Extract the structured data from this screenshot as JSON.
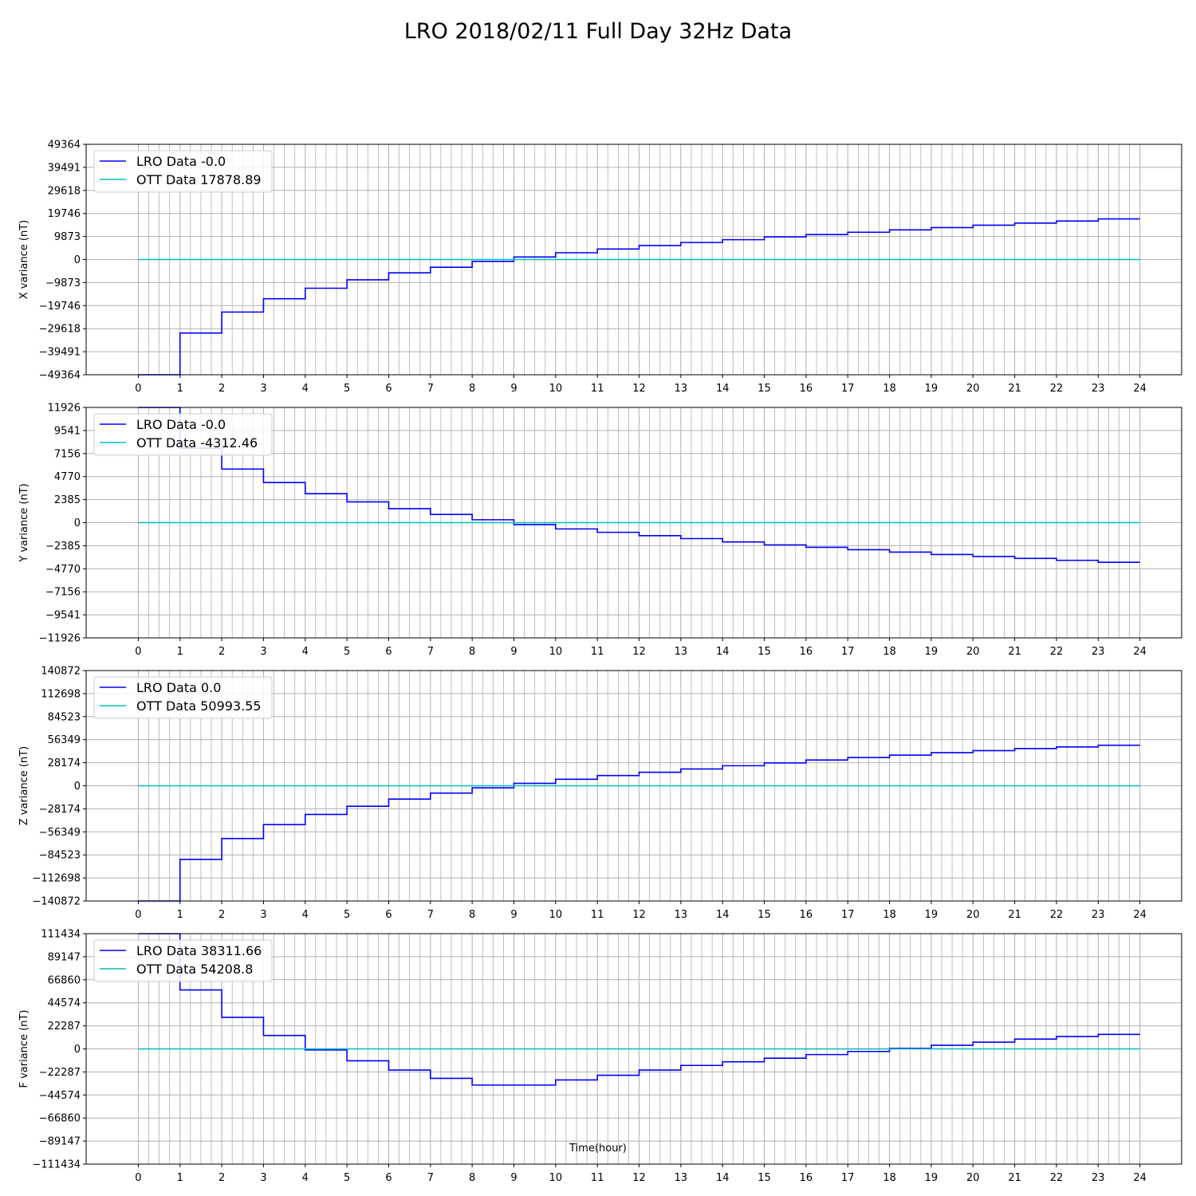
{
  "figure": {
    "title": "LRO 2018/02/11 Full Day 32Hz Data"
  },
  "colors": {
    "lro": "#0000ff",
    "ott": "#00bfbf",
    "grid": "#b0b0b0"
  },
  "chart_data": [
    {
      "type": "line",
      "ylabel": "X variance (nT)",
      "xlabel": "",
      "xlim": [
        -1.25,
        25
      ],
      "ylim": [
        -49364,
        49364
      ],
      "yticks": [
        "49364",
        "39491",
        "29618",
        "19746",
        "9873",
        "0",
        "−9873",
        "−19746",
        "−29618",
        "−39491",
        "−49364"
      ],
      "xticks": [
        "0",
        "1",
        "2",
        "3",
        "4",
        "5",
        "6",
        "7",
        "8",
        "9",
        "10",
        "11",
        "12",
        "13",
        "14",
        "15",
        "16",
        "17",
        "18",
        "19",
        "20",
        "21",
        "22",
        "23",
        "24"
      ],
      "grid": true,
      "legend_position": "top-left",
      "series": [
        {
          "name": "LRO Data -0.0",
          "color": "lro",
          "step": true,
          "x": [
            0,
            1,
            2,
            3,
            4,
            5,
            6,
            7,
            8,
            9,
            10,
            11,
            12,
            13,
            14,
            15,
            16,
            17,
            18,
            19,
            20,
            21,
            22,
            23,
            24
          ],
          "y": [
            -49364,
            -31500,
            -22500,
            -16800,
            -12300,
            -8700,
            -5700,
            -3300,
            -800,
            1100,
            2900,
            4500,
            6000,
            7300,
            8500,
            9700,
            10700,
            11700,
            12700,
            13700,
            14700,
            15600,
            16500,
            17400,
            17400
          ]
        },
        {
          "name": "OTT Data 17878.89",
          "color": "ott",
          "step": false,
          "x": [
            0,
            24
          ],
          "y": [
            0,
            0
          ]
        }
      ]
    },
    {
      "type": "line",
      "ylabel": "Y variance (nT)",
      "xlabel": "",
      "xlim": [
        -1.25,
        25
      ],
      "ylim": [
        -11926,
        11926
      ],
      "yticks": [
        "11926",
        "9541",
        "7156",
        "4770",
        "2385",
        "0",
        "−2385",
        "−4770",
        "−7156",
        "−9541",
        "−11926"
      ],
      "xticks": [
        "0",
        "1",
        "2",
        "3",
        "4",
        "5",
        "6",
        "7",
        "8",
        "9",
        "10",
        "11",
        "12",
        "13",
        "14",
        "15",
        "16",
        "17",
        "18",
        "19",
        "20",
        "21",
        "22",
        "23",
        "24"
      ],
      "grid": true,
      "legend_position": "top-left",
      "series": [
        {
          "name": "LRO Data -0.0",
          "color": "lro",
          "step": true,
          "x": [
            0,
            1,
            2,
            3,
            4,
            5,
            6,
            7,
            8,
            9,
            10,
            11,
            12,
            13,
            14,
            15,
            16,
            17,
            18,
            19,
            20,
            21,
            22,
            23,
            24
          ],
          "y": [
            11926,
            7700,
            5550,
            4150,
            3000,
            2150,
            1450,
            850,
            300,
            -200,
            -650,
            -1000,
            -1350,
            -1650,
            -2000,
            -2300,
            -2550,
            -2800,
            -3050,
            -3300,
            -3500,
            -3700,
            -3900,
            -4100,
            -4100
          ]
        },
        {
          "name": "OTT Data -4312.46",
          "color": "ott",
          "step": false,
          "x": [
            0,
            24
          ],
          "y": [
            0,
            0
          ]
        }
      ]
    },
    {
      "type": "line",
      "ylabel": "Z variance (nT)",
      "xlabel": "",
      "xlim": [
        -1.25,
        25
      ],
      "ylim": [
        -140872,
        140872
      ],
      "yticks": [
        "140872",
        "112698",
        "84523",
        "56349",
        "28174",
        "0",
        "−28174",
        "−56349",
        "−84523",
        "−112698",
        "−140872"
      ],
      "xticks": [
        "0",
        "1",
        "2",
        "3",
        "4",
        "5",
        "6",
        "7",
        "8",
        "9",
        "10",
        "11",
        "12",
        "13",
        "14",
        "15",
        "16",
        "17",
        "18",
        "19",
        "20",
        "21",
        "22",
        "23",
        "24"
      ],
      "grid": true,
      "legend_position": "top-left",
      "series": [
        {
          "name": "LRO Data 0.0",
          "color": "lro",
          "step": true,
          "x": [
            0,
            1,
            2,
            3,
            4,
            5,
            6,
            7,
            8,
            9,
            10,
            11,
            12,
            13,
            14,
            15,
            16,
            17,
            18,
            19,
            20,
            21,
            22,
            23,
            24
          ],
          "y": [
            -140872,
            -90000,
            -64500,
            -47500,
            -35000,
            -25000,
            -16300,
            -9000,
            -2500,
            3000,
            8000,
            12500,
            16500,
            20500,
            24500,
            28000,
            31500,
            34500,
            37500,
            40500,
            43000,
            45500,
            47500,
            49500,
            49500
          ]
        },
        {
          "name": "OTT Data 50993.55",
          "color": "ott",
          "step": false,
          "x": [
            0,
            24
          ],
          "y": [
            0,
            0
          ]
        }
      ]
    },
    {
      "type": "line",
      "ylabel": "F variance (nT)",
      "xlabel": "Time(hour)",
      "xlim": [
        -1.25,
        25
      ],
      "ylim": [
        -111434,
        111434
      ],
      "yticks": [
        "111434",
        "89147",
        "66860",
        "44574",
        "22287",
        "0",
        "−22287",
        "−44574",
        "−66860",
        "−89147",
        "−111434"
      ],
      "xticks": [
        "0",
        "1",
        "2",
        "3",
        "4",
        "5",
        "6",
        "7",
        "8",
        "9",
        "10",
        "11",
        "12",
        "13",
        "14",
        "15",
        "16",
        "17",
        "18",
        "19",
        "20",
        "21",
        "22",
        "23",
        "24"
      ],
      "grid": true,
      "legend_position": "top-left",
      "series": [
        {
          "name": "LRO Data 38311.66",
          "color": "lro",
          "step": true,
          "x": [
            0,
            1,
            2,
            3,
            4,
            5,
            6,
            7,
            8,
            9,
            10,
            11,
            12,
            13,
            14,
            15,
            16,
            17,
            18,
            19,
            20,
            21,
            22,
            23,
            24
          ],
          "y": [
            111434,
            57000,
            30500,
            13000,
            -1000,
            -11500,
            -20500,
            -28500,
            -35000,
            -35000,
            -30000,
            -25500,
            -20500,
            -16000,
            -12500,
            -9000,
            -5500,
            -2500,
            500,
            3500,
            6500,
            9500,
            12000,
            14000,
            14000
          ]
        },
        {
          "name": "OTT Data 54208.8",
          "color": "ott",
          "step": false,
          "x": [
            0,
            24
          ],
          "y": [
            0,
            0
          ]
        }
      ]
    }
  ]
}
